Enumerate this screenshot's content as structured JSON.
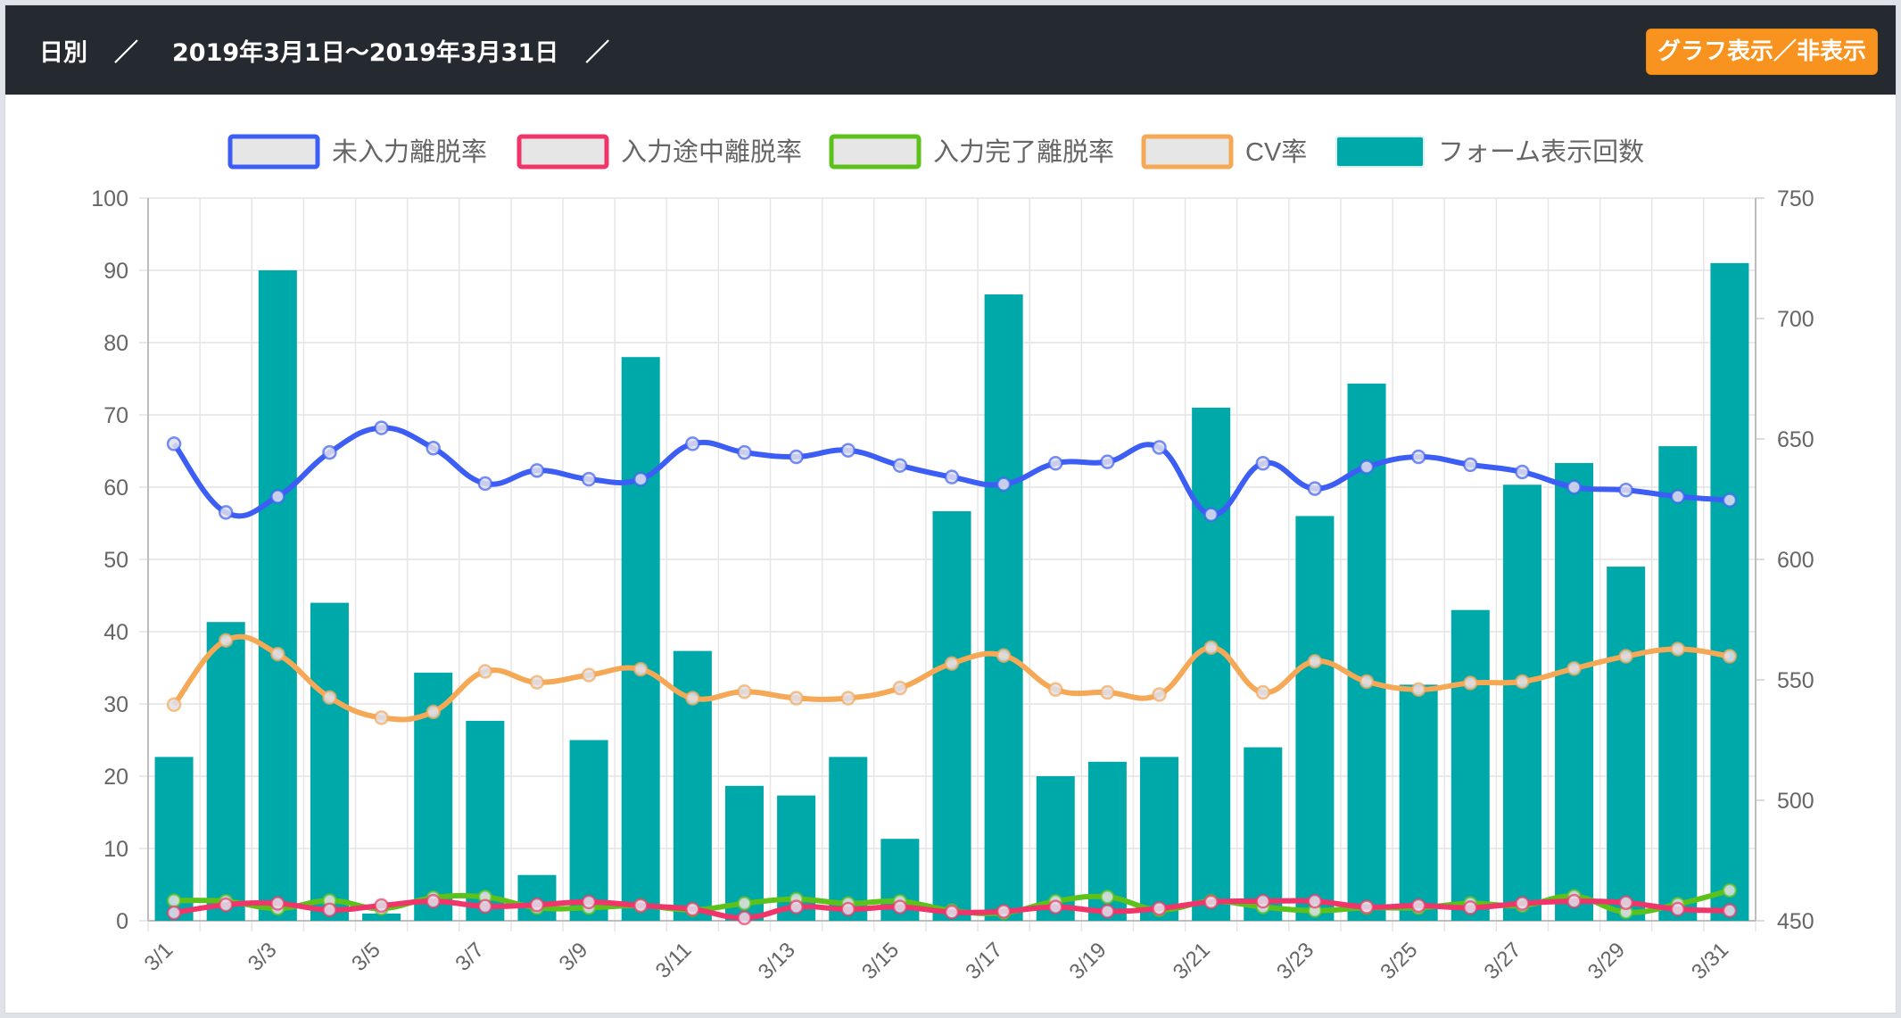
{
  "header": {
    "period_type": "日別",
    "separator": "／",
    "date_range": "2019年3月1日〜2019年3月31日",
    "trailing_separator": "／",
    "toggle_button": "グラフ表示／非表示",
    "toggle_color": "#f7931e",
    "background": "#252a31"
  },
  "chart_data": {
    "type": "bar",
    "categories": [
      "3/1",
      "3/2",
      "3/3",
      "3/4",
      "3/5",
      "3/6",
      "3/7",
      "3/8",
      "3/9",
      "3/10",
      "3/11",
      "3/12",
      "3/13",
      "3/14",
      "3/15",
      "3/16",
      "3/17",
      "3/18",
      "3/19",
      "3/20",
      "3/21",
      "3/22",
      "3/23",
      "3/24",
      "3/25",
      "3/26",
      "3/27",
      "3/28",
      "3/29",
      "3/30",
      "3/31"
    ],
    "x_tick_labels": [
      "3/1",
      "3/3",
      "3/5",
      "3/7",
      "3/9",
      "3/11",
      "3/13",
      "3/15",
      "3/17",
      "3/19",
      "3/21",
      "3/23",
      "3/25",
      "3/27",
      "3/29",
      "3/31"
    ],
    "y_left": {
      "min": 0,
      "max": 100,
      "ticks": [
        0,
        10,
        20,
        30,
        40,
        50,
        60,
        70,
        80,
        90,
        100
      ]
    },
    "y_right": {
      "min": 450,
      "max": 750,
      "ticks": [
        450,
        500,
        550,
        600,
        650,
        700,
        750
      ]
    },
    "grid": true,
    "legend_position": "top-center",
    "series": [
      {
        "name": "未入力離脱率",
        "kind": "line",
        "axis": "left",
        "color": "#3d5ef5",
        "values": [
          66,
          56.5,
          58.7,
          64.8,
          68.2,
          65.4,
          60.5,
          62.3,
          61.1,
          61.1,
          66,
          64.8,
          64.2,
          65.1,
          63,
          61.4,
          60.4,
          63.3,
          63.5,
          65.5,
          56.2,
          63.3,
          59.8,
          62.8,
          64.2,
          63.1,
          62.1,
          60,
          59.6,
          58.7,
          58.2
        ]
      },
      {
        "name": "入力途中離脱率",
        "kind": "line",
        "axis": "left",
        "color": "#f0356a",
        "values": [
          1.1,
          2.2,
          2.4,
          1.5,
          2.1,
          2.7,
          2,
          2.2,
          2.6,
          2.1,
          1.6,
          0.4,
          1.9,
          1.6,
          1.9,
          1.2,
          1.3,
          1.9,
          1.3,
          1.7,
          2.6,
          2.7,
          2.7,
          1.9,
          2.1,
          1.8,
          2.4,
          2.7,
          2.5,
          1.6,
          1.4
        ]
      },
      {
        "name": "入力完了離脱率",
        "kind": "line",
        "axis": "left",
        "color": "#5cc21b",
        "values": [
          2.8,
          2.7,
          1.7,
          2.8,
          1.7,
          3.2,
          3.3,
          1.8,
          1.8,
          2.1,
          1.5,
          2.4,
          3,
          2.4,
          2.7,
          1.4,
          1.1,
          2.7,
          3.3,
          1.5,
          2.7,
          1.9,
          1.4,
          1.8,
          1.8,
          2.4,
          2.1,
          3.4,
          1.2,
          2.3,
          4.2
        ]
      },
      {
        "name": "CV率",
        "kind": "line",
        "axis": "left",
        "color": "#f5a856",
        "values": [
          29.9,
          38.8,
          36.9,
          30.9,
          28.1,
          28.9,
          34.5,
          33,
          34,
          34.8,
          30.8,
          31.7,
          30.8,
          30.8,
          32.2,
          35.6,
          36.7,
          32,
          31.6,
          31.3,
          37.8,
          31.6,
          35.9,
          33.1,
          32,
          32.9,
          33.1,
          34.9,
          36.6,
          37.6,
          36.6
        ]
      },
      {
        "name": "フォーム表示回数",
        "kind": "bar",
        "axis": "right",
        "color": "#00a9a9",
        "values": [
          518,
          574,
          720,
          582,
          453,
          553,
          533,
          469,
          525,
          684,
          562,
          506,
          502,
          518,
          484,
          620,
          710,
          510,
          516,
          518,
          663,
          522,
          618,
          673,
          548,
          579,
          631,
          640,
          597,
          647,
          723
        ]
      }
    ]
  }
}
